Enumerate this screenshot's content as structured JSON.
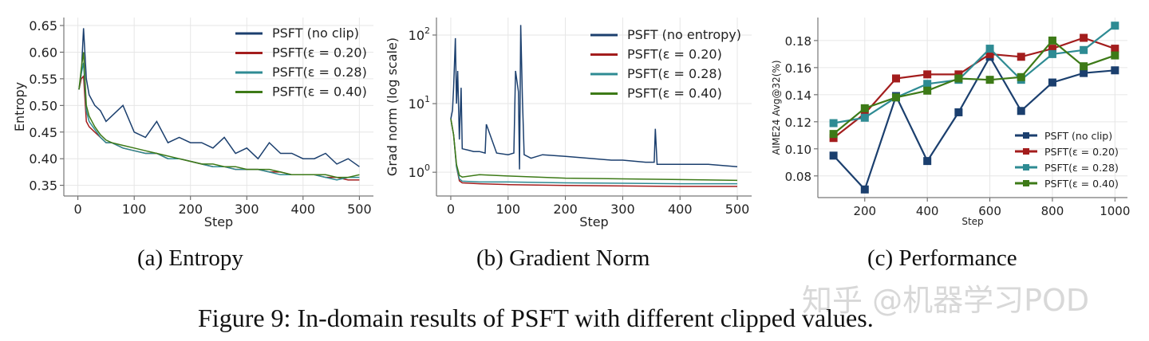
{
  "colors": {
    "no_clip": "#1b3f6e",
    "eps_020": "#a31d1d",
    "eps_028": "#2e8b93",
    "eps_040": "#3d7a17"
  },
  "captions": {
    "a": "(a) Entropy",
    "b": "(b) Gradient Norm",
    "c": "(c) Performance",
    "figure": "Figure 9: In-domain results of PSFT with different clipped values."
  },
  "watermark": "知乎 @机器学习POD",
  "chart_data": [
    {
      "type": "line",
      "xlabel": "Step",
      "ylabel": "Entropy",
      "xlim": [
        -25,
        525
      ],
      "ylim": [
        0.33,
        0.665
      ],
      "xticks": [
        "0",
        "100",
        "200",
        "300",
        "400",
        "500"
      ],
      "yticks": [
        "0.35",
        "0.40",
        "0.45",
        "0.50",
        "0.55",
        "0.60",
        "0.65"
      ],
      "grid": true,
      "legend": "top-right",
      "x": [
        2,
        6,
        10,
        15,
        20,
        30,
        40,
        50,
        60,
        80,
        100,
        120,
        140,
        160,
        180,
        200,
        220,
        240,
        260,
        280,
        300,
        320,
        340,
        360,
        380,
        400,
        420,
        440,
        460,
        480,
        500
      ],
      "series": [
        {
          "name": "PSFT (no clip)",
          "values": [
            0.53,
            0.56,
            0.645,
            0.55,
            0.52,
            0.5,
            0.49,
            0.47,
            0.48,
            0.5,
            0.45,
            0.44,
            0.47,
            0.43,
            0.44,
            0.43,
            0.43,
            0.42,
            0.44,
            0.41,
            0.42,
            0.4,
            0.43,
            0.41,
            0.41,
            0.4,
            0.4,
            0.41,
            0.39,
            0.4,
            0.385
          ]
        },
        {
          "name": "PSFT(ε = 0.20)",
          "values": [
            0.53,
            0.55,
            0.555,
            0.47,
            0.46,
            0.45,
            0.44,
            0.43,
            0.43,
            0.42,
            0.415,
            0.41,
            0.41,
            0.4,
            0.4,
            0.395,
            0.39,
            0.385,
            0.385,
            0.38,
            0.38,
            0.38,
            0.375,
            0.375,
            0.37,
            0.37,
            0.37,
            0.365,
            0.365,
            0.36,
            0.36
          ]
        },
        {
          "name": "PSFT(ε = 0.28)",
          "values": [
            0.53,
            0.56,
            0.58,
            0.49,
            0.47,
            0.455,
            0.44,
            0.43,
            0.43,
            0.42,
            0.415,
            0.41,
            0.41,
            0.4,
            0.4,
            0.395,
            0.39,
            0.385,
            0.385,
            0.38,
            0.38,
            0.38,
            0.375,
            0.37,
            0.37,
            0.37,
            0.37,
            0.365,
            0.36,
            0.365,
            0.365
          ]
        },
        {
          "name": "PSFT(ε = 0.40)",
          "values": [
            0.53,
            0.57,
            0.6,
            0.5,
            0.48,
            0.46,
            0.445,
            0.435,
            0.43,
            0.425,
            0.42,
            0.415,
            0.41,
            0.405,
            0.4,
            0.395,
            0.39,
            0.39,
            0.385,
            0.385,
            0.38,
            0.38,
            0.38,
            0.375,
            0.37,
            0.37,
            0.37,
            0.37,
            0.365,
            0.365,
            0.37
          ]
        }
      ]
    },
    {
      "type": "line",
      "xlabel": "Step",
      "ylabel": "Grad norm (log scale)",
      "yscale": "log",
      "xlim": [
        -25,
        525
      ],
      "ylim": [
        0.45,
        180
      ],
      "xticks": [
        "0",
        "100",
        "200",
        "300",
        "400",
        "500"
      ],
      "yticks": [
        "10^0",
        "10^1",
        "10^2"
      ],
      "grid": true,
      "legend": "top-right",
      "series": [
        {
          "name": "PSFT (no entropy)",
          "x": [
            0,
            3,
            5,
            8,
            10,
            12,
            15,
            18,
            20,
            30,
            40,
            50,
            60,
            62,
            80,
            100,
            110,
            113,
            118,
            120,
            122,
            125,
            128,
            140,
            160,
            200,
            240,
            280,
            300,
            340,
            355,
            357,
            360,
            400,
            450,
            500
          ],
          "values": [
            6,
            8,
            17,
            90,
            10,
            30,
            3,
            17,
            2.2,
            2.1,
            2.0,
            2.0,
            1.9,
            5,
            1.9,
            1.8,
            1.9,
            30,
            15,
            1.1,
            140,
            12,
            1.8,
            1.6,
            1.8,
            1.7,
            1.6,
            1.5,
            1.5,
            1.4,
            1.4,
            4.3,
            1.3,
            1.3,
            1.3,
            1.2
          ]
        },
        {
          "name": "PSFT(ε = 0.20)",
          "x": [
            0,
            5,
            10,
            15,
            20,
            50,
            100,
            200,
            300,
            400,
            500
          ],
          "values": [
            6,
            3.5,
            1.2,
            0.75,
            0.7,
            0.68,
            0.66,
            0.64,
            0.63,
            0.62,
            0.62
          ]
        },
        {
          "name": "PSFT(ε = 0.28)",
          "x": [
            0,
            5,
            10,
            15,
            20,
            50,
            100,
            200,
            300,
            400,
            500
          ],
          "values": [
            6,
            3.5,
            1.2,
            0.8,
            0.74,
            0.72,
            0.72,
            0.7,
            0.69,
            0.68,
            0.68
          ]
        },
        {
          "name": "PSFT(ε = 0.40)",
          "x": [
            0,
            5,
            10,
            15,
            20,
            50,
            100,
            200,
            300,
            400,
            500
          ],
          "values": [
            6,
            3.5,
            1.3,
            0.9,
            0.85,
            0.92,
            0.88,
            0.82,
            0.8,
            0.78,
            0.76
          ]
        }
      ]
    },
    {
      "type": "line",
      "markers": "square",
      "xlabel": "Step",
      "ylabel": "AIME24 Avg@32(%)",
      "xlim": [
        50,
        1040
      ],
      "ylim": [
        0.064,
        0.197
      ],
      "xticks": [
        "200",
        "400",
        "600",
        "800",
        "1000"
      ],
      "yticks": [
        "0.08",
        "0.10",
        "0.12",
        "0.14",
        "0.16",
        "0.18"
      ],
      "grid": true,
      "legend": "bottom-right",
      "x": [
        100,
        200,
        300,
        400,
        500,
        600,
        700,
        800,
        900,
        1000
      ],
      "series": [
        {
          "name": "PSFT (no clip)",
          "values": [
            0.095,
            0.07,
            0.139,
            0.091,
            0.127,
            0.168,
            0.128,
            0.149,
            0.156,
            0.158
          ]
        },
        {
          "name": "PSFT(ε = 0.20)",
          "values": [
            0.108,
            0.126,
            0.152,
            0.155,
            0.155,
            0.17,
            0.168,
            0.174,
            0.182,
            0.174
          ]
        },
        {
          "name": "PSFT(ε = 0.28)",
          "values": [
            0.119,
            0.123,
            0.138,
            0.148,
            0.151,
            0.174,
            0.151,
            0.17,
            0.173,
            0.191
          ]
        },
        {
          "name": "PSFT(ε = 0.40)",
          "values": [
            0.111,
            0.13,
            0.138,
            0.143,
            0.152,
            0.151,
            0.153,
            0.18,
            0.161,
            0.169
          ]
        }
      ]
    }
  ]
}
